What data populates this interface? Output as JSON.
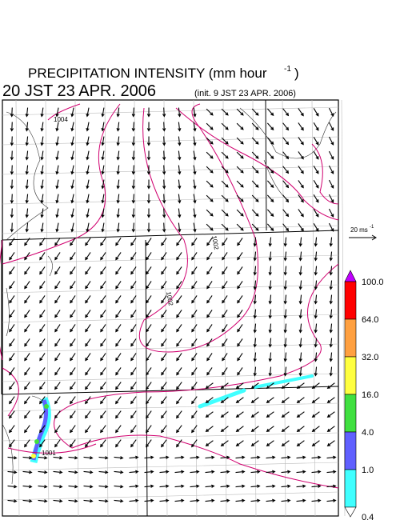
{
  "header": {
    "title": "PRECIPITATION INTENSITY (mm hour",
    "title_sup": "-1",
    "title_end": ")",
    "time": "20 JST 23 APR. 2006",
    "init": "(init. 9 JST 23 APR. 2006)"
  },
  "map": {
    "contour_labels": [
      "1004",
      "1002",
      "1002",
      "1001"
    ]
  },
  "wind_scale": {
    "label": "20 ms",
    "label_sup": "-1"
  },
  "colorbar": {
    "labels": [
      "100.0",
      "64.0",
      "32.0",
      "16.0",
      "4.0",
      "1.0",
      "0.4"
    ],
    "colors": [
      "#ff0000",
      "#ffa040",
      "#ffff40",
      "#40e040",
      "#6060ff",
      "#40ffff"
    ],
    "over_color": "#c000ff",
    "under_color": "#ffffff"
  }
}
